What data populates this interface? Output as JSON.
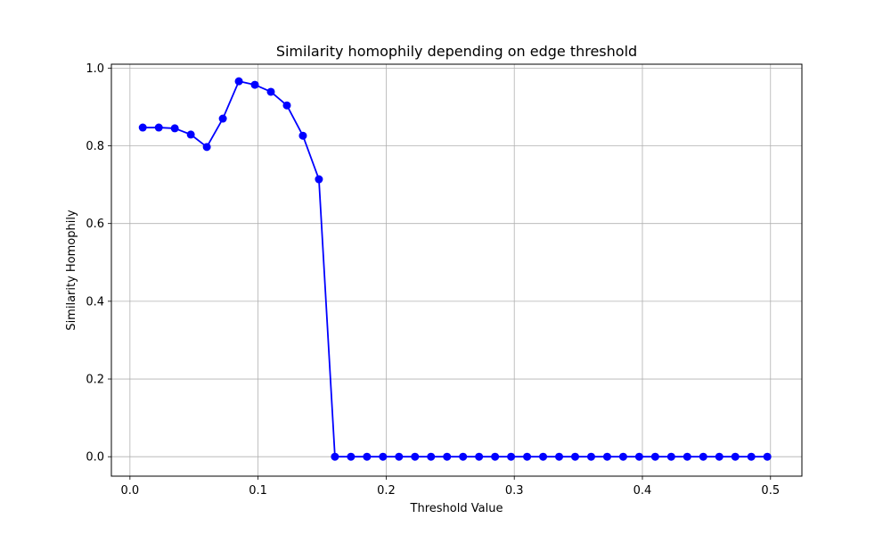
{
  "chart_data": {
    "type": "line",
    "title": "Similarity homophily depending on edge threshold",
    "xlabel": "Threshold Value",
    "ylabel": "Similarity Homophily",
    "xlim": [
      -0.0145,
      0.5245
    ],
    "ylim": [
      -0.05,
      1.01
    ],
    "xticks": [
      0.0,
      0.1,
      0.2,
      0.3,
      0.4,
      0.5
    ],
    "xtick_labels": [
      "0.0",
      "0.1",
      "0.2",
      "0.3",
      "0.4",
      "0.5"
    ],
    "yticks": [
      0.0,
      0.2,
      0.4,
      0.6,
      0.8,
      1.0
    ],
    "ytick_labels": [
      "0.0",
      "0.2",
      "0.4",
      "0.6",
      "0.8",
      "1.0"
    ],
    "grid": true,
    "marker": "circle",
    "series": [
      {
        "color": "#0000ff",
        "x": [
          0.01,
          0.0225,
          0.035,
          0.0475,
          0.06,
          0.0725,
          0.085,
          0.0975,
          0.11,
          0.1225,
          0.135,
          0.1475,
          0.16,
          0.1725,
          0.185,
          0.1975,
          0.21,
          0.2225,
          0.235,
          0.2475,
          0.26,
          0.2725,
          0.285,
          0.2975,
          0.31,
          0.3225,
          0.335,
          0.3475,
          0.36,
          0.3725,
          0.385,
          0.3975,
          0.41,
          0.4225,
          0.435,
          0.4475,
          0.46,
          0.4725,
          0.485,
          0.4975
        ],
        "y": [
          0.847,
          0.847,
          0.845,
          0.829,
          0.797,
          0.87,
          0.966,
          0.957,
          0.939,
          0.904,
          0.826,
          0.714,
          0.0,
          0.0,
          0.0,
          0.0,
          0.0,
          0.0,
          0.0,
          0.0,
          0.0,
          0.0,
          0.0,
          0.0,
          0.0,
          0.0,
          0.0,
          0.0,
          0.0,
          0.0,
          0.0,
          0.0,
          0.0,
          0.0,
          0.0,
          0.0,
          0.0,
          0.0,
          0.0,
          0.0
        ]
      }
    ]
  }
}
